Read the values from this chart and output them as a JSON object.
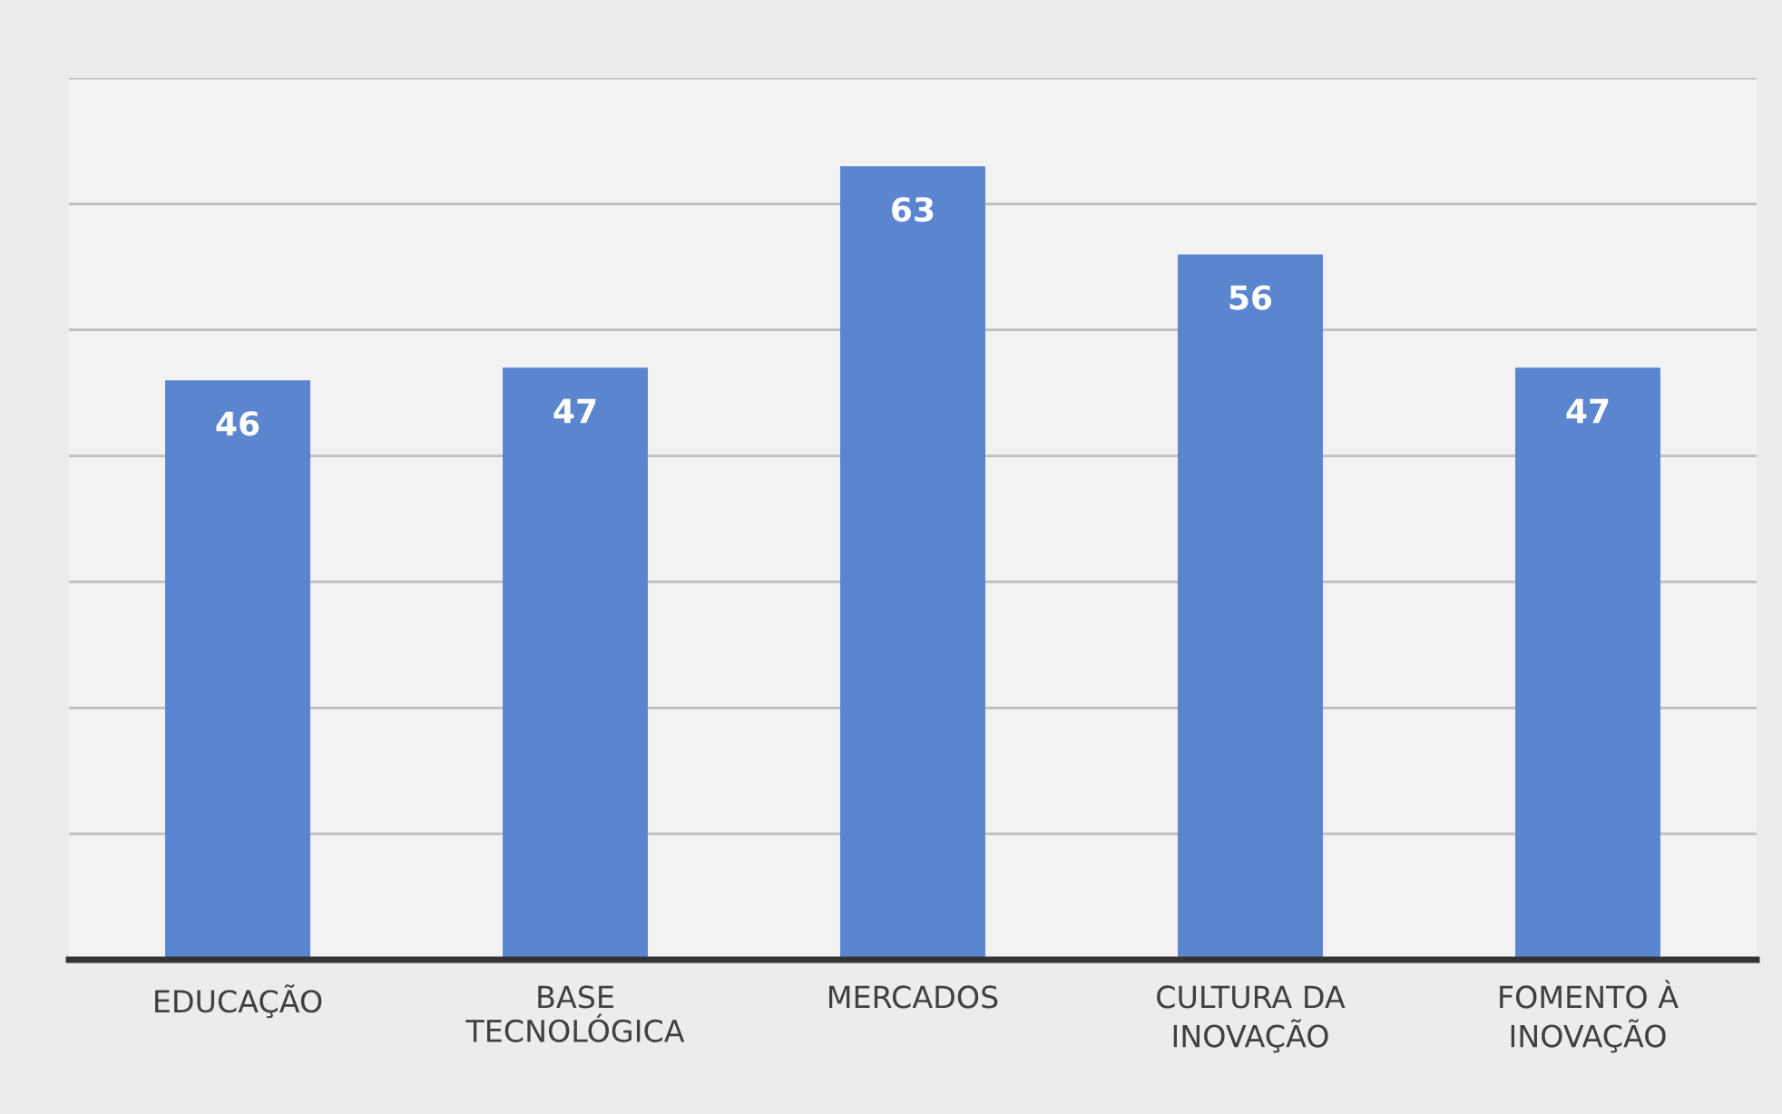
{
  "chart_data": {
    "type": "bar",
    "categories": [
      "EDUCAÇÃO",
      "BASE\nTECNOLÓGICA",
      "MERCADOS",
      "CULTURA DA\nINOVAÇÃO",
      "FOMENTO À\nINOVAÇÃO"
    ],
    "values": [
      46,
      47,
      63,
      56,
      47
    ],
    "color": "#5b86cf",
    "data_labels": true,
    "ylim": [
      0,
      70
    ],
    "yticks": [
      {
        "value": 0,
        "label": null
      },
      {
        "value": 10,
        "label": null
      },
      {
        "value": 20,
        "label": null
      },
      {
        "value": 30,
        "label": null
      },
      {
        "value": 40,
        "label": null
      },
      {
        "value": 50,
        "label": null
      },
      {
        "value": 60,
        "label": null
      },
      {
        "value": 70,
        "label": null
      }
    ],
    "grid": "y",
    "tick_labels": "x"
  }
}
